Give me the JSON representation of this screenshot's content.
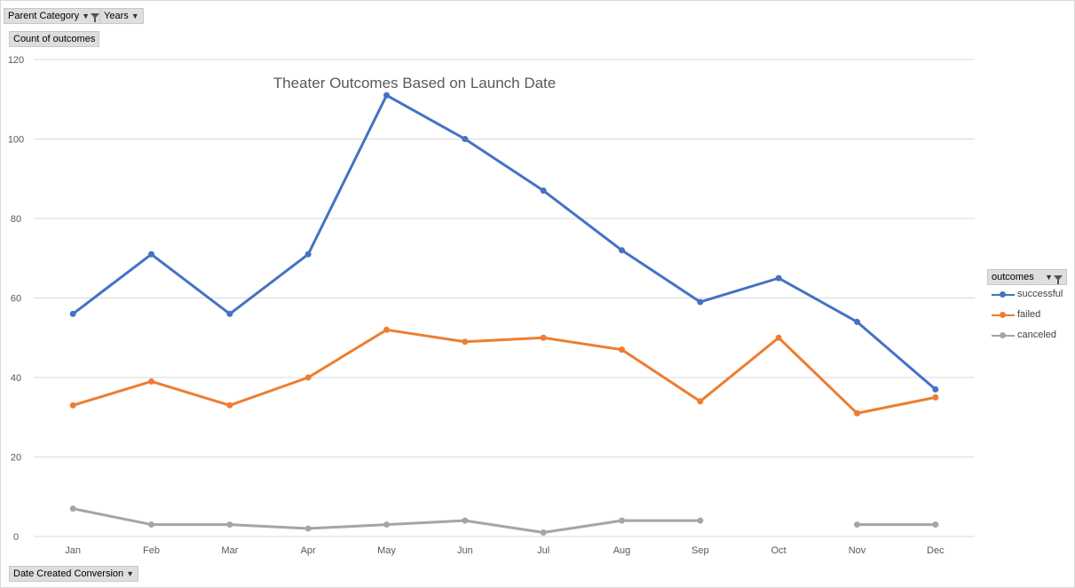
{
  "filters": {
    "parent_category": "Parent Category",
    "years": "Years",
    "value_field": "Count of outcomes",
    "axis_field": "Date Created Conversion",
    "legend_field": "outcomes"
  },
  "colors": {
    "successful": "#4472c4",
    "failed": "#ed7d31",
    "canceled": "#a5a5a5",
    "gridline": "#d9d9d9",
    "axis_text": "#595959"
  },
  "chart_data": {
    "type": "line",
    "title": "Theater Outcomes Based on Launch Date",
    "xlabel": "",
    "ylabel": "",
    "categories": [
      "Jan",
      "Feb",
      "Mar",
      "Apr",
      "May",
      "Jun",
      "Jul",
      "Aug",
      "Sep",
      "Oct",
      "Nov",
      "Dec"
    ],
    "ylim": [
      0,
      120
    ],
    "yticks": [
      0,
      20,
      40,
      60,
      80,
      100,
      120
    ],
    "grid": true,
    "legend": "right",
    "series": [
      {
        "name": "successful",
        "values": [
          56,
          71,
          56,
          71,
          111,
          100,
          87,
          72,
          59,
          65,
          54,
          37
        ]
      },
      {
        "name": "failed",
        "values": [
          33,
          39,
          33,
          40,
          52,
          49,
          50,
          47,
          34,
          50,
          31,
          35
        ]
      },
      {
        "name": "canceled",
        "values": [
          7,
          3,
          3,
          2,
          3,
          4,
          1,
          4,
          4,
          null,
          3,
          3
        ]
      }
    ]
  }
}
